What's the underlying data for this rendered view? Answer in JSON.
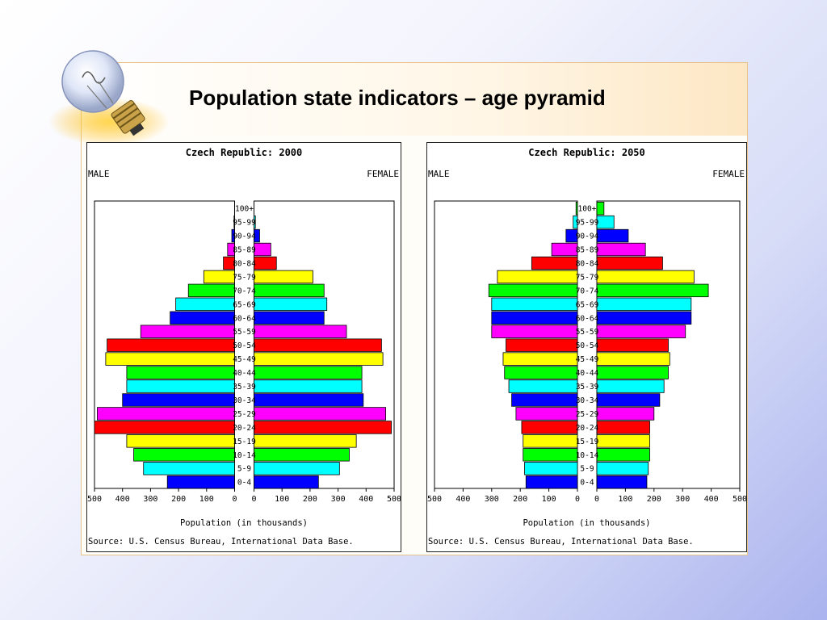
{
  "slide": {
    "title": "Population state indicators – age pyramid"
  },
  "icons": {
    "bulb": "light-bulb-icon"
  },
  "colors": {
    "cycle": [
      "#0000ff",
      "#00ffff",
      "#00ff00",
      "#ffff00",
      "#ff0000",
      "#ff00ff"
    ],
    "axis": "#000000",
    "frame_border": "#e8c48a"
  },
  "chart_data": [
    {
      "type": "bar",
      "title": "Czech Republic: 2000",
      "left_label": "MALE",
      "right_label": "FEMALE",
      "xlabel": "Population (in thousands)",
      "source": "Source: U.S. Census Bureau, International Data Base.",
      "xlim": [
        0,
        500
      ],
      "ticks_left": [
        "500",
        "400",
        "300",
        "200",
        "100",
        "0"
      ],
      "ticks_right": [
        "0",
        "100",
        "200",
        "300",
        "400",
        "500"
      ],
      "categories": [
        "0-4",
        "5-9",
        "10-14",
        "15-19",
        "20-24",
        "25-29",
        "30-34",
        "35-39",
        "40-44",
        "45-49",
        "50-54",
        "55-59",
        "60-64",
        "65-69",
        "70-74",
        "75-79",
        "80-84",
        "85-89",
        "90-94",
        "95-99",
        "100+"
      ],
      "series": [
        {
          "name": "MALE",
          "values": [
            240,
            325,
            360,
            385,
            510,
            490,
            400,
            385,
            385,
            460,
            455,
            335,
            230,
            210,
            165,
            110,
            40,
            25,
            10,
            2,
            0
          ]
        },
        {
          "name": "FEMALE",
          "values": [
            230,
            305,
            340,
            365,
            490,
            470,
            390,
            385,
            385,
            460,
            455,
            330,
            250,
            260,
            250,
            210,
            80,
            60,
            20,
            5,
            0
          ]
        }
      ]
    },
    {
      "type": "bar",
      "title": "Czech Republic: 2050",
      "left_label": "MALE",
      "right_label": "FEMALE",
      "xlabel": "Population (in thousands)",
      "source": "Source: U.S. Census Bureau, International Data Base.",
      "xlim": [
        0,
        500
      ],
      "ticks_left": [
        "500",
        "400",
        "300",
        "200",
        "100",
        "0"
      ],
      "ticks_right": [
        "0",
        "100",
        "200",
        "300",
        "400",
        "500"
      ],
      "categories": [
        "0-4",
        "5-9",
        "10-14",
        "15-19",
        "20-24",
        "25-29",
        "30-34",
        "35-39",
        "40-44",
        "45-49",
        "50-54",
        "55-59",
        "60-64",
        "65-69",
        "70-74",
        "75-79",
        "80-84",
        "85-89",
        "90-94",
        "95-99",
        "100+"
      ],
      "series": [
        {
          "name": "MALE",
          "values": [
            180,
            185,
            190,
            190,
            195,
            215,
            230,
            240,
            255,
            260,
            250,
            300,
            300,
            300,
            310,
            280,
            160,
            90,
            40,
            15,
            5
          ]
        },
        {
          "name": "FEMALE",
          "values": [
            175,
            180,
            185,
            185,
            185,
            200,
            220,
            235,
            250,
            255,
            250,
            310,
            330,
            330,
            390,
            340,
            230,
            170,
            110,
            60,
            25
          ]
        }
      ]
    }
  ]
}
